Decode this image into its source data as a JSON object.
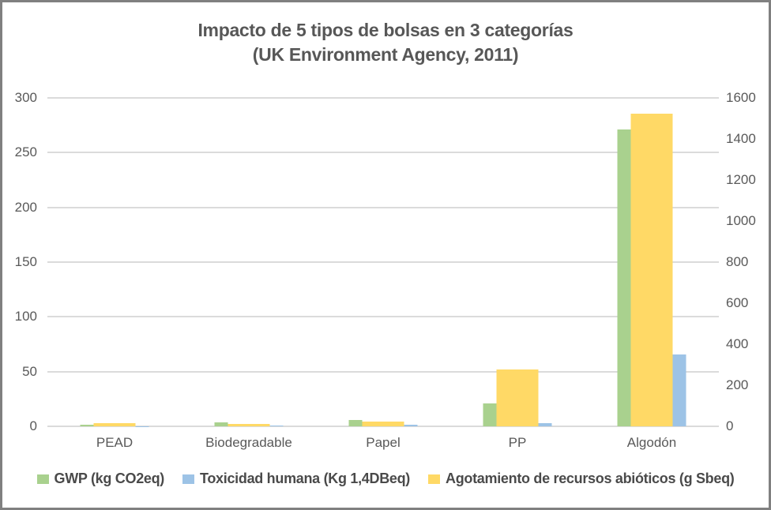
{
  "title": {
    "line1": "Impacto de 5 tipos de bolsas en 3 categorías",
    "line2": "(UK Environment Agency, 2011)"
  },
  "chart_data": {
    "type": "bar",
    "title": "Impacto de 5 tipos de bolsas en 3 categorías (UK Environment Agency, 2011)",
    "categories": [
      "PEAD",
      "Biodegradable",
      "Papel",
      "PP",
      "Algodón"
    ],
    "series": [
      {
        "name": "GWP (kg CO2eq)",
        "axis": "left",
        "color": "#A9D18E",
        "values": [
          1.6,
          4,
          5.5,
          21,
          271.5
        ]
      },
      {
        "name": "Toxicidad humana (Kg 1,4DBeq)",
        "axis": "left",
        "color": "#9DC3E6",
        "values": [
          0.1,
          1,
          1.5,
          2.7,
          66
        ]
      },
      {
        "name": "Agotamiento de recursos abióticos (g Sbeq)",
        "axis": "right",
        "color": "#FFD966",
        "values": [
          15,
          13,
          23,
          276,
          1525
        ]
      }
    ],
    "axes": {
      "left": {
        "min": 0,
        "max": 300,
        "ticks": [
          0,
          50,
          100,
          150,
          200,
          250,
          300
        ]
      },
      "right": {
        "min": 0,
        "max": 1600,
        "ticks": [
          0,
          200,
          400,
          600,
          800,
          1000,
          1200,
          1400,
          1600
        ]
      }
    },
    "grid": true,
    "legend_position": "bottom",
    "bar_draw_order": [
      0,
      2,
      1
    ],
    "colors": {
      "gridline": "#DBDBDB",
      "tick_text": "#595959",
      "title_text": "#575757",
      "legend_text": "#4A4A4A",
      "frame_border": "#808080",
      "background": "#FFFFFF"
    }
  }
}
